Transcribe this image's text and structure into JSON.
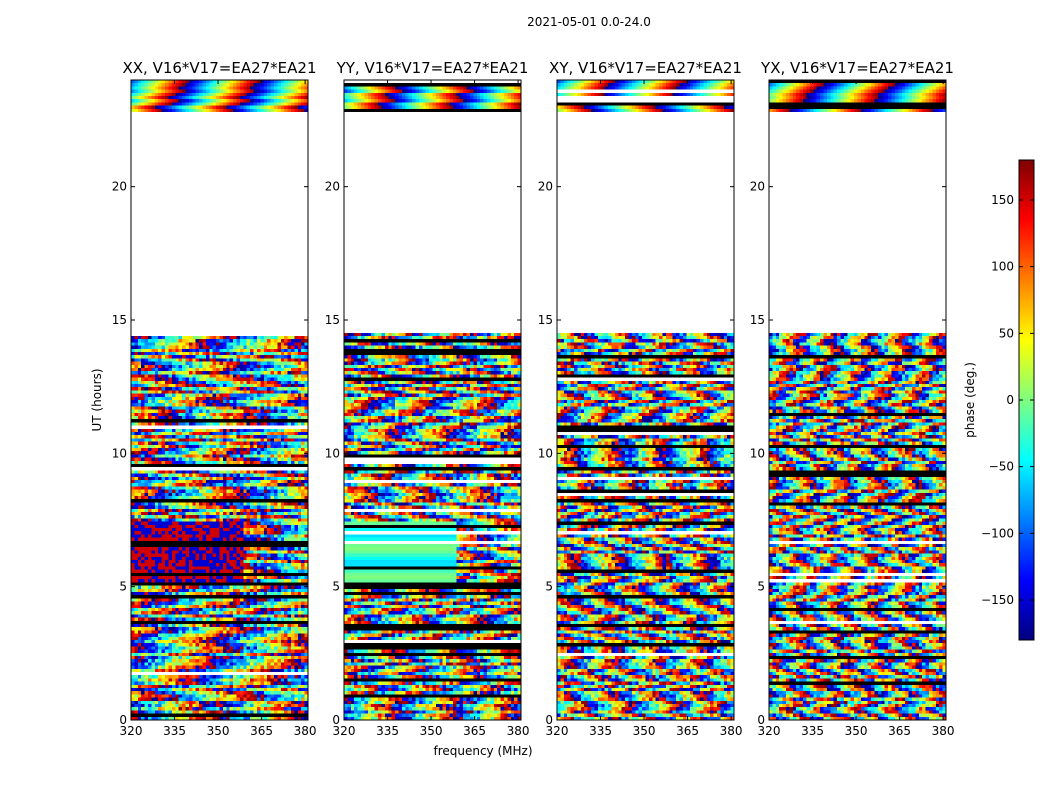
{
  "figure_title": "2021-05-01 0.0-24.0",
  "chart_data": {
    "type": "heatmap",
    "x_label": "frequency (MHz)",
    "y_label": "UT (hours)",
    "x_range": [
      320,
      381
    ],
    "y_range": [
      0,
      24
    ],
    "x_ticks": [
      320,
      335,
      350,
      365,
      380
    ],
    "y_ticks": [
      0,
      5,
      10,
      15,
      20
    ],
    "panels": [
      {
        "title": "XX, V16*V17=EA27*EA21",
        "baseline": "V16*V17=EA27*EA21",
        "polarization": "XX"
      },
      {
        "title": "YY, V16*V17=EA27*EA21",
        "baseline": "V16*V17=EA27*EA21",
        "polarization": "YY"
      },
      {
        "title": "XY, V16*V17=EA27*EA21",
        "baseline": "V16*V17=EA27*EA21",
        "polarization": "XY"
      },
      {
        "title": "YX, V16*V17=EA27*EA21",
        "baseline": "V16*V17=EA27*EA21",
        "polarization": "YX"
      }
    ],
    "data_coverage_hours": [
      [
        0.0,
        14.5
      ],
      [
        22.8,
        24.0
      ]
    ],
    "empty_gap_hours": [
      14.5,
      22.8
    ],
    "colorbar": {
      "label": "phase (deg.)",
      "range": [
        -180,
        180
      ],
      "ticks": [
        -150,
        -100,
        -50,
        0,
        50,
        100,
        150
      ],
      "colormap": "jet",
      "stops": [
        "#00007f",
        "#0000ff",
        "#007fff",
        "#00ffff",
        "#7fff7f",
        "#ffff00",
        "#ff7f00",
        "#ff0000",
        "#7f0000"
      ]
    }
  }
}
